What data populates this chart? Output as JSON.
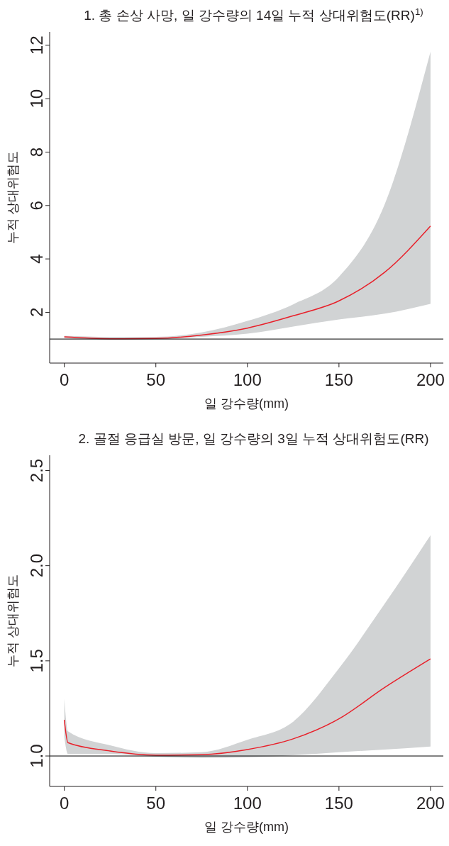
{
  "chart_data": [
    {
      "type": "line",
      "title": "1. 총 손상 사망, 일 강수량의 14일 누적 상대위험도(RR)$^{1)}$",
      "xlabel": "일 강수량(mm)",
      "ylabel": "누적 상대위험도",
      "x": [
        0,
        25,
        50,
        75,
        100,
        125,
        150,
        175,
        200
      ],
      "xlim": [
        -8,
        207
      ],
      "xticks": [
        0,
        50,
        100,
        150,
        200
      ],
      "ylim": [
        0.1,
        12.5
      ],
      "yticks": [
        2,
        4,
        6,
        8,
        10,
        12
      ],
      "series": [
        {
          "color": "#e8202a",
          "values": [
            1.08,
            1.01,
            1.02,
            1.15,
            1.41,
            1.87,
            2.43,
            3.5,
            5.23
          ],
          "lower": [
            1.03,
            0.98,
            0.99,
            1.08,
            1.2,
            1.47,
            1.73,
            1.95,
            2.32
          ],
          "upper": [
            1.12,
            1.08,
            1.08,
            1.25,
            1.68,
            2.3,
            3.33,
            6.05,
            11.76
          ]
        }
      ],
      "ref_lines": [
        {
          "axis": "y",
          "value": 1,
          "color": "#000000"
        }
      ]
    },
    {
      "type": "line",
      "title": "2. 골절 응급실 방문, 일 강수량의 3일 누적 상대위험도(RR)",
      "xlabel": "일 강수량(mm)",
      "ylabel": "누적 상대위험도",
      "x": [
        0,
        2,
        25,
        50,
        75,
        100,
        125,
        150,
        175,
        200
      ],
      "xlim": [
        -8,
        207
      ],
      "xticks": [
        0,
        50,
        100,
        150,
        200
      ],
      "ylim": [
        0.84,
        2.58
      ],
      "yticks": [
        {
          "value": 1,
          "label": "1.0"
        },
        1.5,
        {
          "value": 2,
          "label": "2.0"
        },
        2.5
      ],
      "series": [
        {
          "color": "#e8202a",
          "values": [
            1.19,
            1.07,
            1.026,
            1.004,
            1.007,
            1.034,
            1.09,
            1.195,
            1.36,
            1.51
          ],
          "lower": [
            1.1,
            1.01,
            1.01,
            0.996,
            0.99,
            0.993,
            1.004,
            1.02,
            1.034,
            1.05
          ],
          "upper": [
            1.3,
            1.13,
            1.056,
            1.015,
            1.02,
            1.085,
            1.18,
            1.46,
            1.8,
            2.16
          ]
        }
      ],
      "ref_lines": [
        {
          "axis": "y",
          "value": 1,
          "color": "#000000"
        }
      ]
    }
  ]
}
